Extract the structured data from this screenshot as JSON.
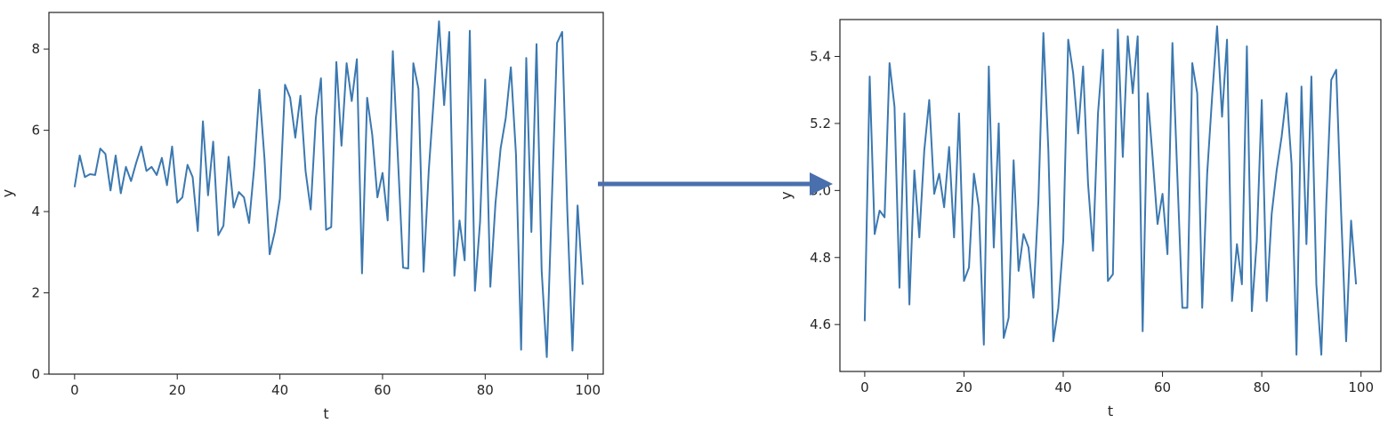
{
  "colors": {
    "line": "#3b78b0",
    "arrow": "#4a6fad",
    "axes": "#222222"
  },
  "chart_data": [
    {
      "type": "line",
      "xlabel": "t",
      "ylabel": "y",
      "xlim": [
        -5,
        103
      ],
      "ylim": [
        0,
        8.9
      ],
      "xticks": [
        0,
        20,
        40,
        60,
        80,
        100
      ],
      "yticks": [
        0,
        2,
        4,
        6,
        8
      ],
      "grid": false,
      "series": [
        {
          "values": [
            4.6,
            5.38,
            4.85,
            4.92,
            4.9,
            5.55,
            5.42,
            4.52,
            5.38,
            4.45,
            5.1,
            4.75,
            5.2,
            5.6,
            5.0,
            5.1,
            4.9,
            5.32,
            4.65,
            5.6,
            4.22,
            4.35,
            5.15,
            4.85,
            3.52,
            6.22,
            4.4,
            5.72,
            3.42,
            3.65,
            5.35,
            4.1,
            4.48,
            4.35,
            3.72,
            5.1,
            7.0,
            5.3,
            2.95,
            3.5,
            4.32,
            7.12,
            6.8,
            5.82,
            6.85,
            5.0,
            4.05,
            6.3,
            7.28,
            3.55,
            3.62,
            7.68,
            5.62,
            7.65,
            6.72,
            7.75,
            2.48,
            6.8,
            5.88,
            4.35,
            4.95,
            3.78,
            7.95,
            5.3,
            2.62,
            2.6,
            7.65,
            7.02,
            2.52,
            5.0,
            6.82,
            8.68,
            6.62,
            8.42,
            2.42,
            3.78,
            2.8,
            8.45,
            2.05,
            3.75,
            7.25,
            2.15,
            4.2,
            5.55,
            6.3,
            7.55,
            5.4,
            0.6,
            7.78,
            3.5,
            8.12,
            2.55,
            0.42,
            4.32,
            8.15,
            8.42,
            4.02,
            0.58,
            4.15,
            2.2
          ]
        }
      ]
    },
    {
      "type": "line",
      "xlabel": "t",
      "ylabel": "y",
      "xlim": [
        -5,
        104
      ],
      "ylim": [
        4.46,
        5.51
      ],
      "xticks": [
        0,
        20,
        40,
        60,
        80,
        100
      ],
      "yticks": [
        4.6,
        4.8,
        5.0,
        5.2,
        5.4
      ],
      "grid": false,
      "series": [
        {
          "values": [
            4.61,
            5.34,
            4.87,
            4.94,
            4.92,
            5.38,
            5.25,
            4.71,
            5.23,
            4.66,
            5.06,
            4.86,
            5.12,
            5.27,
            4.99,
            5.05,
            4.95,
            5.13,
            4.86,
            5.23,
            4.73,
            4.77,
            5.05,
            4.95,
            4.54,
            5.37,
            4.83,
            5.2,
            4.56,
            4.62,
            5.09,
            4.76,
            4.87,
            4.83,
            4.68,
            4.97,
            5.47,
            5.12,
            4.55,
            4.65,
            4.85,
            5.45,
            5.35,
            5.17,
            5.37,
            5.02,
            4.82,
            5.23,
            5.42,
            4.73,
            4.75,
            5.48,
            5.1,
            5.46,
            5.29,
            5.46,
            4.58,
            5.29,
            5.1,
            4.9,
            4.99,
            4.81,
            5.44,
            5.04,
            4.65,
            4.65,
            5.38,
            5.29,
            4.65,
            5.05,
            5.28,
            5.49,
            5.22,
            5.45,
            4.67,
            4.84,
            4.72,
            5.43,
            4.64,
            4.85,
            5.27,
            4.67,
            4.93,
            5.06,
            5.16,
            5.29,
            5.08,
            4.51,
            5.31,
            4.84,
            5.34,
            4.72,
            4.51,
            4.96,
            5.33,
            5.36,
            4.93,
            4.55,
            4.91,
            4.72
          ]
        }
      ]
    }
  ]
}
